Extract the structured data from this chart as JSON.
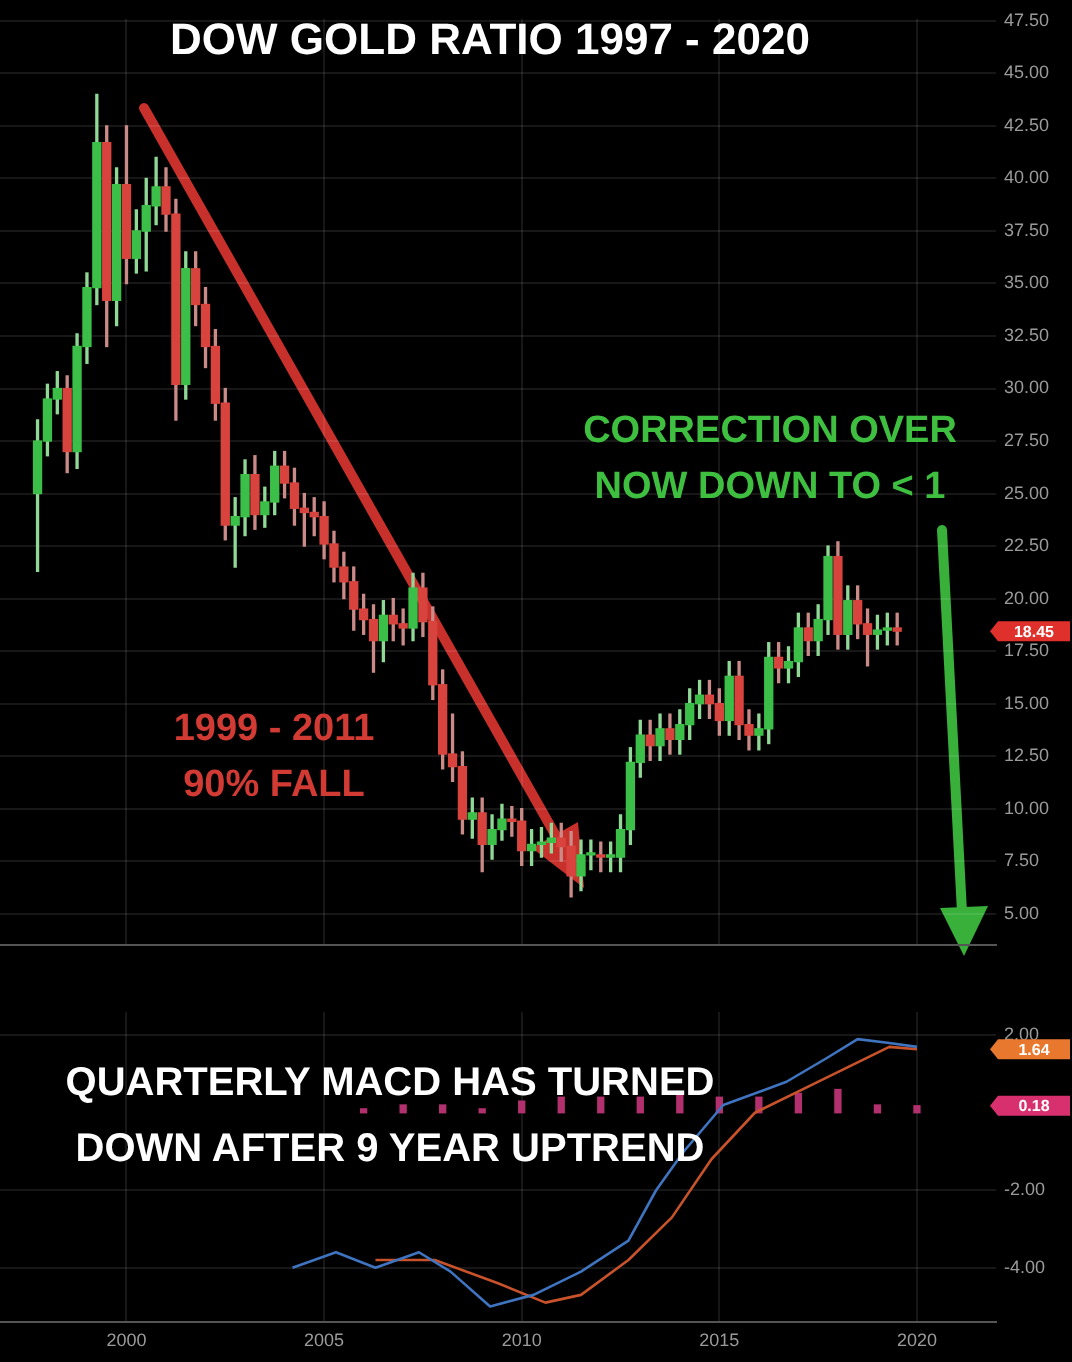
{
  "chart_data": [
    {
      "type": "candlestick",
      "title": "DOW GOLD RATIO 1997 - 2020",
      "x": [
        1997.75,
        1998,
        1998.25,
        1998.5,
        1998.75,
        1999,
        1999.25,
        1999.5,
        1999.75,
        2000,
        2000.25,
        2000.5,
        2000.75,
        2001,
        2001.25,
        2001.5,
        2001.75,
        2002,
        2002.25,
        2002.5,
        2002.75,
        2003,
        2003.25,
        2003.5,
        2003.75,
        2004,
        2004.25,
        2004.5,
        2004.75,
        2005,
        2005.25,
        2005.5,
        2005.75,
        2006,
        2006.25,
        2006.5,
        2006.75,
        2007,
        2007.25,
        2007.5,
        2007.75,
        2008,
        2008.25,
        2008.5,
        2008.75,
        2009,
        2009.25,
        2009.5,
        2009.75,
        2010,
        2010.25,
        2010.5,
        2010.75,
        2011,
        2011.25,
        2011.5,
        2011.75,
        2012,
        2012.25,
        2012.5,
        2012.75,
        2013,
        2013.25,
        2013.5,
        2013.75,
        2014,
        2014.25,
        2014.5,
        2014.75,
        2015,
        2015.25,
        2015.5,
        2015.75,
        2016,
        2016.25,
        2016.5,
        2016.75,
        2017,
        2017.25,
        2017.5,
        2017.75,
        2018,
        2018.25,
        2018.5,
        2018.75,
        2019,
        2019.25,
        2019.5
      ],
      "ohlc": [
        [
          25.0,
          28.5,
          21.3,
          27.5
        ],
        [
          27.5,
          30.2,
          26.8,
          29.5
        ],
        [
          29.5,
          30.8,
          28.8,
          30.0
        ],
        [
          30.0,
          30.6,
          26.0,
          27.0
        ],
        [
          27.0,
          32.6,
          26.2,
          32.0
        ],
        [
          32.0,
          35.5,
          31.2,
          34.8
        ],
        [
          34.8,
          44.0,
          34.0,
          41.7
        ],
        [
          41.7,
          42.5,
          32.0,
          34.2
        ],
        [
          34.2,
          40.5,
          33.0,
          39.7
        ],
        [
          39.7,
          42.5,
          35.0,
          36.2
        ],
        [
          36.2,
          38.5,
          35.5,
          37.5
        ],
        [
          37.5,
          40.0,
          35.6,
          38.7
        ],
        [
          38.7,
          41.0,
          37.8,
          39.6
        ],
        [
          39.6,
          40.5,
          37.5,
          38.3
        ],
        [
          38.3,
          39.0,
          28.5,
          30.2
        ],
        [
          30.2,
          36.5,
          29.5,
          35.7
        ],
        [
          35.7,
          36.5,
          33.0,
          34.0
        ],
        [
          34.0,
          34.8,
          31.0,
          32.0
        ],
        [
          32.0,
          32.8,
          28.5,
          29.3
        ],
        [
          29.3,
          30.0,
          22.8,
          23.5
        ],
        [
          23.5,
          24.8,
          21.5,
          23.9
        ],
        [
          23.9,
          26.6,
          23.0,
          25.9
        ],
        [
          25.9,
          26.8,
          23.3,
          24.0
        ],
        [
          24.0,
          25.3,
          23.4,
          24.6
        ],
        [
          24.6,
          27.0,
          24.0,
          26.3
        ],
        [
          26.3,
          27.0,
          24.8,
          25.5
        ],
        [
          25.5,
          26.2,
          23.5,
          24.3
        ],
        [
          24.3,
          25.0,
          22.5,
          24.1
        ],
        [
          24.1,
          24.8,
          23.0,
          23.9
        ],
        [
          23.9,
          24.6,
          21.9,
          22.6
        ],
        [
          22.6,
          23.2,
          20.8,
          21.5
        ],
        [
          21.5,
          22.2,
          20.0,
          20.8
        ],
        [
          20.8,
          21.5,
          18.5,
          19.5
        ],
        [
          19.5,
          20.2,
          18.3,
          19.0
        ],
        [
          19.0,
          19.7,
          16.5,
          18.0
        ],
        [
          18.0,
          19.9,
          17.0,
          19.2
        ],
        [
          19.2,
          20.0,
          18.0,
          18.8
        ],
        [
          18.8,
          19.5,
          17.8,
          18.6
        ],
        [
          18.6,
          21.2,
          18.0,
          20.5
        ],
        [
          20.5,
          21.2,
          18.2,
          18.9
        ],
        [
          18.9,
          19.6,
          15.2,
          15.9
        ],
        [
          15.9,
          16.6,
          11.9,
          12.6
        ],
        [
          12.6,
          14.5,
          11.3,
          12.0
        ],
        [
          12.0,
          12.7,
          8.8,
          9.5
        ],
        [
          9.5,
          10.5,
          8.6,
          9.8
        ],
        [
          9.8,
          10.5,
          7.0,
          8.3
        ],
        [
          8.3,
          9.7,
          7.6,
          9.0
        ],
        [
          9.0,
          10.2,
          8.5,
          9.5
        ],
        [
          9.5,
          10.1,
          8.7,
          9.4
        ],
        [
          9.4,
          10.0,
          7.3,
          8.0
        ],
        [
          8.0,
          9.0,
          7.3,
          8.3
        ],
        [
          8.3,
          9.1,
          7.7,
          8.4
        ],
        [
          8.4,
          9.3,
          7.9,
          8.6
        ],
        [
          8.6,
          9.3,
          7.5,
          8.2
        ],
        [
          8.2,
          8.9,
          5.8,
          6.8
        ],
        [
          6.8,
          8.5,
          6.1,
          7.8
        ],
        [
          7.8,
          8.5,
          7.1,
          7.8
        ],
        [
          7.8,
          8.4,
          7.0,
          7.7
        ],
        [
          7.7,
          8.4,
          7.0,
          7.7
        ],
        [
          7.7,
          9.7,
          7.0,
          9.0
        ],
        [
          9.0,
          12.9,
          8.3,
          12.2
        ],
        [
          12.2,
          14.2,
          11.5,
          13.5
        ],
        [
          13.5,
          14.2,
          12.3,
          13.0
        ],
        [
          13.0,
          14.5,
          12.3,
          13.8
        ],
        [
          13.8,
          14.5,
          12.6,
          13.3
        ],
        [
          13.3,
          14.7,
          12.6,
          14.0
        ],
        [
          14.0,
          15.7,
          13.3,
          15.0
        ],
        [
          15.0,
          16.1,
          14.3,
          15.4
        ],
        [
          15.4,
          16.1,
          14.3,
          15.0
        ],
        [
          15.0,
          15.7,
          13.5,
          14.2
        ],
        [
          14.2,
          17.0,
          13.5,
          16.3
        ],
        [
          16.3,
          17.0,
          13.3,
          14.0
        ],
        [
          14.0,
          14.7,
          12.8,
          13.5
        ],
        [
          13.5,
          14.5,
          12.8,
          13.8
        ],
        [
          13.8,
          17.9,
          13.1,
          17.2
        ],
        [
          17.2,
          17.9,
          16.0,
          16.7
        ],
        [
          16.7,
          17.7,
          16.0,
          17.0
        ],
        [
          17.0,
          19.3,
          16.3,
          18.6
        ],
        [
          18.6,
          19.3,
          17.3,
          18.0
        ],
        [
          18.0,
          19.7,
          17.3,
          19.0
        ],
        [
          19.0,
          22.5,
          18.3,
          22.0
        ],
        [
          22.0,
          22.7,
          17.6,
          18.3
        ],
        [
          18.3,
          20.6,
          17.6,
          19.9
        ],
        [
          19.9,
          20.6,
          18.1,
          18.8
        ],
        [
          18.8,
          19.5,
          16.8,
          18.3
        ],
        [
          18.3,
          19.2,
          17.6,
          18.5
        ],
        [
          18.5,
          19.3,
          17.8,
          18.6
        ],
        [
          18.6,
          19.3,
          17.8,
          18.45
        ]
      ],
      "xlim": [
        1996.8,
        2022.0
      ],
      "xticks": [
        2000,
        2005,
        2010,
        2015,
        2020
      ],
      "ylim": [
        3.5,
        47.6
      ],
      "yticks": [
        {
          "value": 5,
          "label": "5.00"
        },
        {
          "value": 7.5,
          "label": "7.50"
        },
        {
          "value": 10,
          "label": "10.00"
        },
        {
          "value": 12.5,
          "label": "12.50"
        },
        {
          "value": 15,
          "label": "15.00"
        },
        {
          "value": 17.5,
          "label": "17.50"
        },
        {
          "value": 20,
          "label": "20.00"
        },
        {
          "value": 22.5,
          "label": "22.50"
        },
        {
          "value": 25,
          "label": "25.00"
        },
        {
          "value": 27.5,
          "label": "27.50"
        },
        {
          "value": 30,
          "label": "30.00"
        },
        {
          "value": 32.5,
          "label": "32.50"
        },
        {
          "value": 35,
          "label": "35.00"
        },
        {
          "value": 37.5,
          "label": "37.50"
        },
        {
          "value": 40,
          "label": "40.00"
        },
        {
          "value": 42.5,
          "label": "42.50"
        },
        {
          "value": 45,
          "label": "45.00"
        },
        {
          "value": 47.5,
          "label": "47.50"
        }
      ],
      "tick_labels": "y",
      "grid": true,
      "annotations": [
        "CORRECTION OVER\nNOW DOWN TO < 1",
        "1999 - 2011\n90% FALL",
        "18.45"
      ]
    },
    {
      "type": "line",
      "series": [
        {
          "color": "#3f74c0",
          "x": [
            2004.2,
            2005.3,
            2006.3,
            2007.4,
            2008.2,
            2009.2,
            2010.3,
            2011.5,
            2012.7,
            2013.4,
            2014.1,
            2015.1,
            2016.7,
            2017.7,
            2018.5,
            2019.3,
            2020.0
          ],
          "values": [
            -4.0,
            -3.6,
            -4.0,
            -3.6,
            -4.1,
            -5.0,
            -4.7,
            -4.1,
            -3.3,
            -2.0,
            -1.0,
            0.2,
            0.8,
            1.4,
            1.9,
            1.8,
            1.7
          ]
        },
        {
          "color": "#c8532b",
          "x": [
            2006.3,
            2007.8,
            2009.4,
            2010.6,
            2011.5,
            2012.7,
            2013.8,
            2014.8,
            2015.9,
            2017.3,
            2018.5,
            2019.3,
            2020.0
          ],
          "values": [
            -3.8,
            -3.8,
            -4.4,
            -4.9,
            -4.7,
            -3.8,
            -2.7,
            -1.2,
            0.0,
            0.7,
            1.3,
            1.7,
            1.64
          ]
        },
        {
          "type": "bar",
          "color": "#b3306e",
          "x": [
            2006,
            2007,
            2008,
            2009,
            2010,
            2011,
            2012,
            2013,
            2014,
            2015,
            2016,
            2017,
            2018,
            2019,
            2020
          ],
          "values": [
            0.1,
            0.2,
            0.2,
            0.1,
            0.3,
            0.4,
            0.4,
            0.4,
            0.5,
            0.4,
            0.4,
            0.5,
            0.6,
            0.2,
            0.18
          ]
        }
      ],
      "xlim": [
        1996.8,
        2022.0
      ],
      "xticks": [
        2000,
        2005,
        2010,
        2015,
        2020
      ],
      "ylim": [
        -5.4,
        2.6
      ],
      "yticks": [
        {
          "value": -4,
          "label": "-4.00"
        },
        {
          "value": -2,
          "label": "-2.00"
        },
        {
          "value": 2,
          "label": "2.00"
        }
      ],
      "grid": true,
      "annotations": [
        "QUARTERLY MACD HAS TURNED\nDOWN AFTER 9 YEAR UPTREND",
        "1.64",
        "0.18"
      ]
    }
  ]
}
